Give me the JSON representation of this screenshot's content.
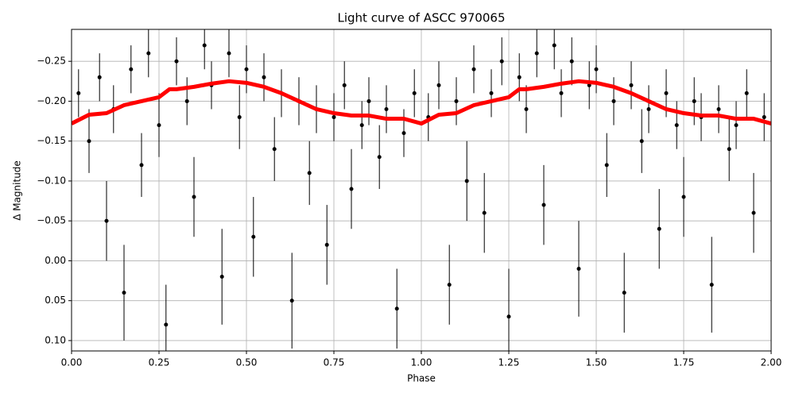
{
  "chart_data": {
    "type": "scatter",
    "title": "Light curve of ASCC 970065",
    "x_label": "Phase",
    "y_label": "Δ Magnitude",
    "xlim": [
      0,
      2
    ],
    "ylim": [
      0.113,
      -0.29
    ],
    "xticks": [
      {
        "value": 0,
        "label": "0.00"
      },
      {
        "value": 0.25,
        "label": "0.25"
      },
      {
        "value": 0.5,
        "label": "0.50"
      },
      {
        "value": 0.75,
        "label": "0.75"
      },
      {
        "value": 1,
        "label": "1.00"
      },
      {
        "value": 1.25,
        "label": "1.25"
      },
      {
        "value": 1.5,
        "label": "1.50"
      },
      {
        "value": 1.75,
        "label": "1.75"
      },
      {
        "value": 2,
        "label": "2.00"
      }
    ],
    "yticks": [
      {
        "value": -0.25,
        "label": "−0.25"
      },
      {
        "value": -0.2,
        "label": "−0.20"
      },
      {
        "value": -0.15,
        "label": "−0.15"
      },
      {
        "value": -0.1,
        "label": "−0.10"
      },
      {
        "value": -0.05,
        "label": "−0.05"
      },
      {
        "value": 0,
        "label": "0.00"
      },
      {
        "value": 0.05,
        "label": "0.05"
      },
      {
        "value": 0.1,
        "label": "0.10"
      }
    ],
    "grid": true,
    "points": {
      "color": "#000000",
      "x": [
        0.02,
        0.05,
        0.08,
        0.1,
        0.12,
        0.15,
        0.17,
        0.2,
        0.22,
        0.25,
        0.27,
        0.3,
        0.33,
        0.35,
        0.38,
        0.4,
        0.43,
        0.45,
        0.48,
        0.5,
        0.52,
        0.55,
        0.58,
        0.6,
        0.63,
        0.65,
        0.68,
        0.7,
        0.73,
        0.75,
        0.78,
        0.8,
        0.83,
        0.85,
        0.88,
        0.9,
        0.93,
        0.95,
        0.98,
        1.02,
        1.05,
        1.08,
        1.1,
        1.13,
        1.15,
        1.18,
        1.2,
        1.23,
        1.25,
        1.28,
        1.3,
        1.33,
        1.35,
        1.38,
        1.4,
        1.43,
        1.45,
        1.48,
        1.5,
        1.53,
        1.55,
        1.58,
        1.6,
        1.63,
        1.65,
        1.68,
        1.7,
        1.73,
        1.75,
        1.78,
        1.8,
        1.83,
        1.85,
        1.88,
        1.9,
        1.93,
        1.95,
        1.98
      ],
      "y": [
        -0.21,
        -0.15,
        -0.23,
        -0.05,
        -0.19,
        0.04,
        -0.24,
        -0.12,
        -0.26,
        -0.17,
        0.08,
        -0.25,
        -0.2,
        -0.08,
        -0.27,
        -0.22,
        0.02,
        -0.26,
        -0.18,
        -0.24,
        -0.03,
        -0.23,
        -0.14,
        -0.21,
        0.05,
        -0.2,
        -0.11,
        -0.19,
        -0.02,
        -0.18,
        -0.22,
        -0.09,
        -0.17,
        -0.2,
        -0.13,
        -0.19,
        0.06,
        -0.16,
        -0.21,
        -0.18,
        -0.22,
        0.03,
        -0.2,
        -0.1,
        -0.24,
        -0.06,
        -0.21,
        -0.25,
        0.07,
        -0.23,
        -0.19,
        -0.26,
        -0.07,
        -0.27,
        -0.21,
        -0.25,
        0.01,
        -0.22,
        -0.24,
        -0.12,
        -0.2,
        0.04,
        -0.22,
        -0.15,
        -0.19,
        -0.04,
        -0.21,
        -0.17,
        -0.08,
        -0.2,
        -0.18,
        0.03,
        -0.19,
        -0.14,
        -0.17,
        -0.21,
        -0.06,
        -0.18
      ],
      "errors": [
        0.03,
        0.04,
        0.03,
        0.05,
        0.03,
        0.06,
        0.03,
        0.04,
        0.03,
        0.04,
        0.05,
        0.03,
        0.03,
        0.05,
        0.03,
        0.03,
        0.06,
        0.03,
        0.04,
        0.03,
        0.05,
        0.03,
        0.04,
        0.03,
        0.06,
        0.03,
        0.04,
        0.03,
        0.05,
        0.03,
        0.03,
        0.05,
        0.03,
        0.03,
        0.04,
        0.03,
        0.05,
        0.03,
        0.03,
        0.03,
        0.03,
        0.05,
        0.03,
        0.05,
        0.03,
        0.05,
        0.03,
        0.03,
        0.06,
        0.03,
        0.03,
        0.03,
        0.05,
        0.03,
        0.03,
        0.03,
        0.06,
        0.03,
        0.03,
        0.04,
        0.03,
        0.05,
        0.03,
        0.04,
        0.03,
        0.05,
        0.03,
        0.03,
        0.05,
        0.03,
        0.03,
        0.06,
        0.03,
        0.04,
        0.03,
        0.03,
        0.05,
        0.03
      ]
    },
    "trend": {
      "color": "#ff0000",
      "x": [
        0,
        0.05,
        0.1,
        0.15,
        0.2,
        0.25,
        0.28,
        0.3,
        0.35,
        0.4,
        0.45,
        0.5,
        0.55,
        0.6,
        0.65,
        0.7,
        0.75,
        0.8,
        0.85,
        0.9,
        0.95,
        1.0,
        1.05,
        1.1,
        1.15,
        1.2,
        1.25,
        1.28,
        1.3,
        1.35,
        1.4,
        1.45,
        1.5,
        1.55,
        1.6,
        1.65,
        1.7,
        1.75,
        1.8,
        1.85,
        1.9,
        1.95,
        2.0
      ],
      "values": [
        -0.172,
        -0.183,
        -0.185,
        -0.195,
        -0.2,
        -0.205,
        -0.215,
        -0.215,
        -0.218,
        -0.222,
        -0.225,
        -0.223,
        -0.218,
        -0.21,
        -0.2,
        -0.19,
        -0.185,
        -0.182,
        -0.182,
        -0.178,
        -0.178,
        -0.172,
        -0.183,
        -0.185,
        -0.195,
        -0.2,
        -0.205,
        -0.215,
        -0.215,
        -0.218,
        -0.222,
        -0.225,
        -0.223,
        -0.218,
        -0.21,
        -0.2,
        -0.19,
        -0.185,
        -0.182,
        -0.182,
        -0.178,
        -0.178,
        -0.172
      ]
    }
  }
}
